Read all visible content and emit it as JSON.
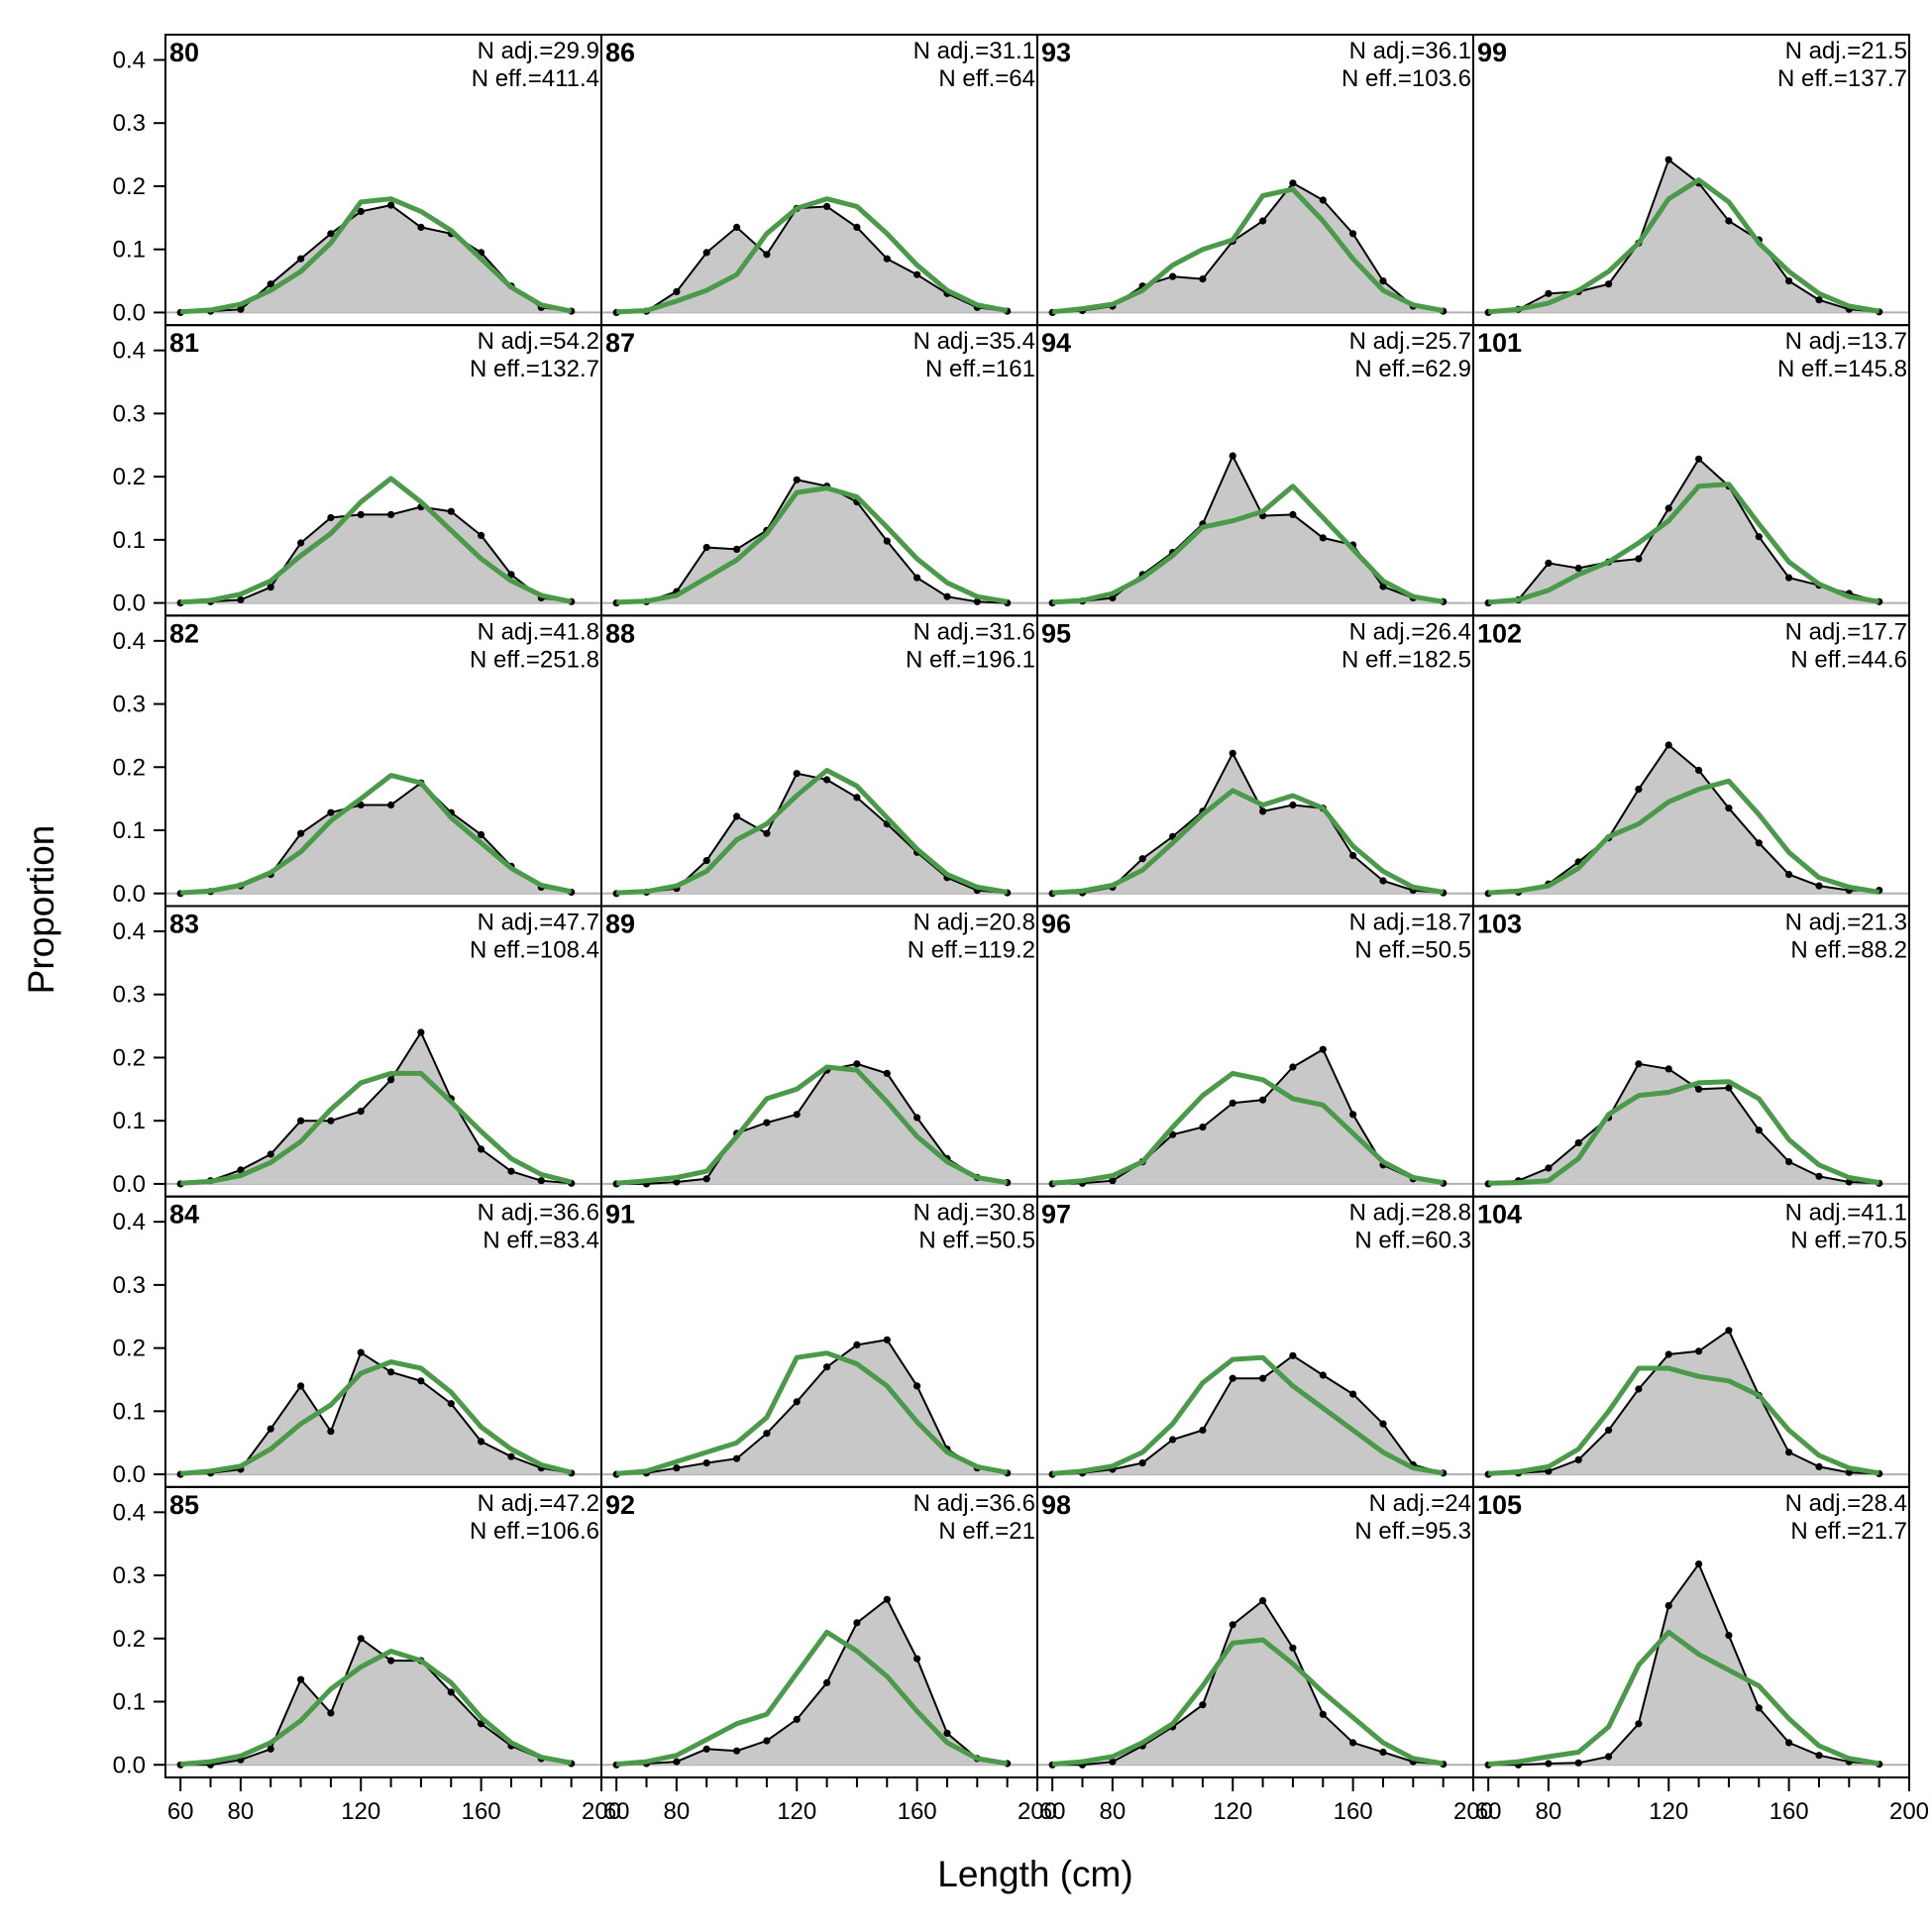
{
  "chart_data": {
    "type": "area",
    "ylabel": "Proportion",
    "xlabel": "Length (cm)",
    "xlim": [
      55,
      200
    ],
    "ylim": [
      -0.02,
      0.44
    ],
    "xticks": [
      60,
      80,
      120,
      160,
      200
    ],
    "xticks_minor": [
      70,
      90,
      100,
      110,
      130,
      140,
      150,
      170,
      180,
      190
    ],
    "yticks": [
      0.0,
      0.1,
      0.2,
      0.3,
      0.4
    ],
    "ytick_labels": [
      "0.0",
      "0.1",
      "0.2",
      "0.3",
      "0.4"
    ],
    "layout": {
      "rows": 6,
      "cols": 4,
      "order": "column-major"
    },
    "bins": [
      60,
      70,
      80,
      90,
      100,
      110,
      120,
      130,
      140,
      150,
      160,
      170,
      180,
      190
    ],
    "colors": {
      "observed_fill": "#c8c8c8",
      "observed_line": "#000000",
      "expected_line": "#4a9a4a",
      "zero_line": "#b0b0b0"
    },
    "panels": [
      {
        "id": "80",
        "n_adj": "N adj.=29.9",
        "n_eff": "N eff.=411.4",
        "obs": [
          0.0,
          0.002,
          0.005,
          0.045,
          0.085,
          0.125,
          0.16,
          0.17,
          0.135,
          0.125,
          0.095,
          0.042,
          0.008,
          0.002
        ],
        "exp": [
          0.001,
          0.004,
          0.013,
          0.035,
          0.065,
          0.11,
          0.175,
          0.18,
          0.16,
          0.13,
          0.085,
          0.04,
          0.012,
          0.002
        ]
      },
      {
        "id": "81",
        "n_adj": "N adj.=54.2",
        "n_eff": "N eff.=132.7",
        "obs": [
          0.0,
          0.002,
          0.005,
          0.025,
          0.095,
          0.135,
          0.14,
          0.14,
          0.152,
          0.145,
          0.107,
          0.045,
          0.008,
          0.002
        ],
        "exp": [
          0.001,
          0.004,
          0.014,
          0.035,
          0.075,
          0.11,
          0.16,
          0.197,
          0.16,
          0.115,
          0.07,
          0.035,
          0.012,
          0.002
        ]
      },
      {
        "id": "82",
        "n_adj": "N adj.=41.8",
        "n_eff": "N eff.=251.8",
        "obs": [
          0.0,
          0.003,
          0.012,
          0.03,
          0.095,
          0.128,
          0.14,
          0.14,
          0.175,
          0.128,
          0.093,
          0.043,
          0.01,
          0.002
        ],
        "exp": [
          0.001,
          0.004,
          0.013,
          0.033,
          0.066,
          0.115,
          0.15,
          0.187,
          0.175,
          0.12,
          0.08,
          0.04,
          0.013,
          0.003
        ]
      },
      {
        "id": "83",
        "n_adj": "N adj.=47.7",
        "n_eff": "N eff.=108.4",
        "obs": [
          0.0,
          0.005,
          0.022,
          0.047,
          0.1,
          0.1,
          0.115,
          0.165,
          0.24,
          0.135,
          0.055,
          0.02,
          0.005,
          0.001
        ],
        "exp": [
          0.001,
          0.004,
          0.013,
          0.034,
          0.067,
          0.118,
          0.16,
          0.175,
          0.175,
          0.13,
          0.083,
          0.04,
          0.015,
          0.003
        ]
      },
      {
        "id": "84",
        "n_adj": "N adj.=36.6",
        "n_eff": "N eff.=83.4",
        "obs": [
          0.0,
          0.002,
          0.008,
          0.072,
          0.14,
          0.068,
          0.193,
          0.162,
          0.148,
          0.112,
          0.052,
          0.028,
          0.01,
          0.002
        ],
        "exp": [
          0.001,
          0.005,
          0.013,
          0.04,
          0.08,
          0.11,
          0.16,
          0.178,
          0.168,
          0.13,
          0.075,
          0.04,
          0.015,
          0.003
        ]
      },
      {
        "id": "85",
        "n_adj": "N adj.=47.2",
        "n_eff": "N eff.=106.6",
        "obs": [
          0.0,
          0.0,
          0.008,
          0.025,
          0.135,
          0.082,
          0.2,
          0.165,
          0.165,
          0.115,
          0.065,
          0.03,
          0.01,
          0.002
        ],
        "exp": [
          0.001,
          0.005,
          0.014,
          0.035,
          0.07,
          0.12,
          0.155,
          0.18,
          0.165,
          0.13,
          0.075,
          0.035,
          0.012,
          0.003
        ]
      },
      {
        "id": "86",
        "n_adj": "N adj.=31.1",
        "n_eff": "N eff.=64",
        "obs": [
          0.0,
          0.002,
          0.033,
          0.095,
          0.135,
          0.092,
          0.165,
          0.168,
          0.135,
          0.085,
          0.06,
          0.03,
          0.008,
          0.002
        ],
        "exp": [
          0.001,
          0.003,
          0.018,
          0.035,
          0.06,
          0.125,
          0.165,
          0.18,
          0.168,
          0.125,
          0.075,
          0.035,
          0.012,
          0.003
        ]
      },
      {
        "id": "87",
        "n_adj": "N adj.=35.4",
        "n_eff": "N eff.=161",
        "obs": [
          0.0,
          0.002,
          0.018,
          0.088,
          0.085,
          0.115,
          0.195,
          0.185,
          0.16,
          0.098,
          0.04,
          0.01,
          0.002,
          0.0
        ],
        "exp": [
          0.001,
          0.003,
          0.012,
          0.04,
          0.068,
          0.11,
          0.175,
          0.182,
          0.168,
          0.12,
          0.07,
          0.032,
          0.01,
          0.002
        ]
      },
      {
        "id": "88",
        "n_adj": "N adj.=31.6",
        "n_eff": "N eff.=196.1",
        "obs": [
          0.0,
          0.002,
          0.008,
          0.052,
          0.122,
          0.095,
          0.19,
          0.18,
          0.152,
          0.11,
          0.065,
          0.025,
          0.005,
          0.001
        ],
        "exp": [
          0.001,
          0.003,
          0.012,
          0.035,
          0.085,
          0.11,
          0.155,
          0.195,
          0.17,
          0.12,
          0.07,
          0.03,
          0.01,
          0.002
        ]
      },
      {
        "id": "89",
        "n_adj": "N adj.=20.8",
        "n_eff": "N eff.=119.2",
        "obs": [
          0.0,
          0.0,
          0.003,
          0.008,
          0.08,
          0.097,
          0.11,
          0.18,
          0.19,
          0.175,
          0.105,
          0.04,
          0.01,
          0.002
        ],
        "exp": [
          0.001,
          0.005,
          0.01,
          0.02,
          0.075,
          0.135,
          0.15,
          0.185,
          0.18,
          0.13,
          0.075,
          0.035,
          0.01,
          0.002
        ]
      },
      {
        "id": "91",
        "n_adj": "N adj.=30.8",
        "n_eff": "N eff.=50.5",
        "obs": [
          0.0,
          0.002,
          0.01,
          0.018,
          0.025,
          0.065,
          0.115,
          0.17,
          0.205,
          0.213,
          0.14,
          0.04,
          0.01,
          0.002
        ],
        "exp": [
          0.001,
          0.005,
          0.02,
          0.035,
          0.05,
          0.09,
          0.185,
          0.192,
          0.175,
          0.14,
          0.083,
          0.035,
          0.012,
          0.003
        ]
      },
      {
        "id": "92",
        "n_adj": "N adj.=36.6",
        "n_eff": "N eff.=21",
        "obs": [
          0.0,
          0.002,
          0.005,
          0.025,
          0.022,
          0.038,
          0.072,
          0.13,
          0.225,
          0.262,
          0.168,
          0.05,
          0.01,
          0.002
        ],
        "exp": [
          0.001,
          0.005,
          0.015,
          0.04,
          0.065,
          0.08,
          0.145,
          0.21,
          0.18,
          0.14,
          0.085,
          0.035,
          0.01,
          0.002
        ]
      },
      {
        "id": "93",
        "n_adj": "N adj.=36.1",
        "n_eff": "N eff.=103.6",
        "obs": [
          0.0,
          0.003,
          0.01,
          0.042,
          0.057,
          0.053,
          0.113,
          0.145,
          0.205,
          0.178,
          0.125,
          0.05,
          0.01,
          0.002
        ],
        "exp": [
          0.001,
          0.006,
          0.013,
          0.035,
          0.075,
          0.1,
          0.115,
          0.185,
          0.195,
          0.145,
          0.085,
          0.035,
          0.012,
          0.003
        ]
      },
      {
        "id": "94",
        "n_adj": "N adj.=25.7",
        "n_eff": "N eff.=62.9",
        "obs": [
          0.0,
          0.003,
          0.008,
          0.045,
          0.08,
          0.125,
          0.233,
          0.138,
          0.14,
          0.103,
          0.092,
          0.026,
          0.008,
          0.002
        ],
        "exp": [
          0.001,
          0.004,
          0.015,
          0.04,
          0.075,
          0.12,
          0.13,
          0.145,
          0.185,
          0.135,
          0.085,
          0.035,
          0.01,
          0.002
        ]
      },
      {
        "id": "95",
        "n_adj": "N adj.=26.4",
        "n_eff": "N eff.=182.5",
        "obs": [
          0.0,
          0.001,
          0.01,
          0.055,
          0.09,
          0.13,
          0.222,
          0.13,
          0.14,
          0.135,
          0.06,
          0.02,
          0.005,
          0.001
        ],
        "exp": [
          0.001,
          0.004,
          0.013,
          0.037,
          0.08,
          0.125,
          0.163,
          0.14,
          0.155,
          0.135,
          0.075,
          0.035,
          0.01,
          0.002
        ]
      },
      {
        "id": "96",
        "n_adj": "N adj.=18.7",
        "n_eff": "N eff.=50.5",
        "obs": [
          0.0,
          0.001,
          0.005,
          0.035,
          0.078,
          0.09,
          0.128,
          0.133,
          0.185,
          0.213,
          0.11,
          0.03,
          0.008,
          0.001
        ],
        "exp": [
          0.001,
          0.005,
          0.013,
          0.035,
          0.09,
          0.14,
          0.175,
          0.165,
          0.135,
          0.125,
          0.08,
          0.035,
          0.01,
          0.002
        ]
      },
      {
        "id": "97",
        "n_adj": "N adj.=28.8",
        "n_eff": "N eff.=60.3",
        "obs": [
          0.0,
          0.002,
          0.008,
          0.018,
          0.055,
          0.07,
          0.152,
          0.152,
          0.188,
          0.157,
          0.127,
          0.08,
          0.015,
          0.002
        ],
        "exp": [
          0.001,
          0.005,
          0.013,
          0.035,
          0.08,
          0.145,
          0.182,
          0.185,
          0.14,
          0.105,
          0.07,
          0.035,
          0.01,
          0.002
        ]
      },
      {
        "id": "98",
        "n_adj": "N adj.=24",
        "n_eff": "N eff.=95.3",
        "obs": [
          0.0,
          0.0,
          0.005,
          0.03,
          0.06,
          0.095,
          0.222,
          0.26,
          0.185,
          0.08,
          0.035,
          0.02,
          0.005,
          0.001
        ],
        "exp": [
          0.001,
          0.005,
          0.013,
          0.035,
          0.065,
          0.125,
          0.193,
          0.198,
          0.16,
          0.115,
          0.075,
          0.035,
          0.01,
          0.002
        ]
      },
      {
        "id": "99",
        "n_adj": "N adj.=21.5",
        "n_eff": "N eff.=137.7",
        "obs": [
          0.0,
          0.005,
          0.03,
          0.033,
          0.045,
          0.11,
          0.242,
          0.205,
          0.145,
          0.115,
          0.05,
          0.02,
          0.005,
          0.001
        ],
        "exp": [
          0.001,
          0.005,
          0.015,
          0.035,
          0.065,
          0.11,
          0.18,
          0.21,
          0.175,
          0.11,
          0.065,
          0.03,
          0.01,
          0.002
        ]
      },
      {
        "id": "101",
        "n_adj": "N adj.=13.7",
        "n_eff": "N eff.=145.8",
        "obs": [
          0.0,
          0.005,
          0.063,
          0.055,
          0.065,
          0.07,
          0.15,
          0.228,
          0.185,
          0.105,
          0.04,
          0.028,
          0.015,
          0.002
        ],
        "exp": [
          0.001,
          0.005,
          0.02,
          0.045,
          0.065,
          0.095,
          0.13,
          0.185,
          0.188,
          0.125,
          0.065,
          0.03,
          0.01,
          0.002
        ]
      },
      {
        "id": "102",
        "n_adj": "N adj.=17.7",
        "n_eff": "N eff.=44.6",
        "obs": [
          0.0,
          0.002,
          0.015,
          0.05,
          0.088,
          0.165,
          0.235,
          0.195,
          0.135,
          0.08,
          0.03,
          0.012,
          0.005,
          0.005
        ],
        "exp": [
          0.001,
          0.004,
          0.012,
          0.04,
          0.09,
          0.11,
          0.145,
          0.165,
          0.178,
          0.125,
          0.065,
          0.025,
          0.01,
          0.002
        ]
      },
      {
        "id": "103",
        "n_adj": "N adj.=21.3",
        "n_eff": "N eff.=88.2",
        "obs": [
          0.0,
          0.005,
          0.025,
          0.065,
          0.105,
          0.19,
          0.182,
          0.15,
          0.152,
          0.085,
          0.035,
          0.012,
          0.003,
          0.001
        ],
        "exp": [
          0.001,
          0.002,
          0.005,
          0.04,
          0.11,
          0.14,
          0.145,
          0.16,
          0.162,
          0.135,
          0.07,
          0.03,
          0.01,
          0.002
        ]
      },
      {
        "id": "104",
        "n_adj": "N adj.=41.1",
        "n_eff": "N eff.=70.5",
        "obs": [
          0.0,
          0.002,
          0.005,
          0.023,
          0.07,
          0.135,
          0.19,
          0.195,
          0.228,
          0.125,
          0.035,
          0.012,
          0.003,
          0.001
        ],
        "exp": [
          0.001,
          0.004,
          0.012,
          0.04,
          0.1,
          0.168,
          0.168,
          0.155,
          0.148,
          0.125,
          0.07,
          0.03,
          0.01,
          0.002
        ]
      },
      {
        "id": "105",
        "n_adj": "N adj.=28.4",
        "n_eff": "N eff.=21.7",
        "obs": [
          0.0,
          0.0,
          0.002,
          0.003,
          0.013,
          0.065,
          0.252,
          0.318,
          0.205,
          0.09,
          0.035,
          0.015,
          0.005,
          0.001
        ],
        "exp": [
          0.001,
          0.005,
          0.013,
          0.02,
          0.06,
          0.158,
          0.21,
          0.175,
          0.15,
          0.125,
          0.073,
          0.03,
          0.01,
          0.002
        ]
      }
    ]
  }
}
